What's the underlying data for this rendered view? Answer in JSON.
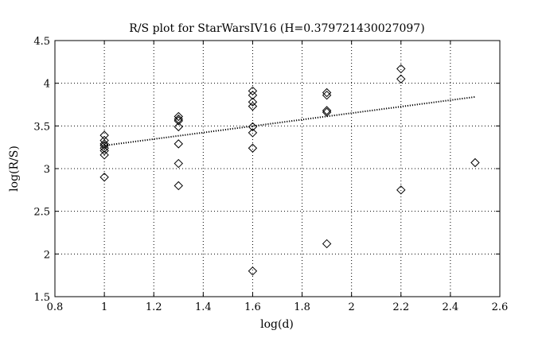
{
  "chart_data": {
    "type": "scatter",
    "title": "R/S plot for StarWarsIV16 (H=0.379721430027097)",
    "xlabel": "log(d)",
    "ylabel": "log(R/S)",
    "xlim": [
      0.8,
      2.6
    ],
    "ylim": [
      1.5,
      4.5
    ],
    "xticks": [
      0.8,
      1,
      1.2,
      1.4,
      1.6,
      1.8,
      2,
      2.2,
      2.4,
      2.6
    ],
    "yticks": [
      1.5,
      2,
      2.5,
      3,
      3.5,
      4,
      4.5
    ],
    "xtick_labels": [
      "0.8",
      "1",
      "1.2",
      "1.4",
      "1.6",
      "1.8",
      "2",
      "2.2",
      "2.4",
      "2.6"
    ],
    "ytick_labels": [
      "1.5",
      "2",
      "2.5",
      "3",
      "3.5",
      "4",
      "4.5"
    ],
    "grid": true,
    "marker": "diamond",
    "points": [
      {
        "x": 1.0,
        "y": 3.39
      },
      {
        "x": 1.0,
        "y": 3.33
      },
      {
        "x": 1.0,
        "y": 3.29
      },
      {
        "x": 1.0,
        "y": 3.27
      },
      {
        "x": 1.0,
        "y": 3.24
      },
      {
        "x": 1.0,
        "y": 3.21
      },
      {
        "x": 1.0,
        "y": 3.16
      },
      {
        "x": 1.0,
        "y": 2.9
      },
      {
        "x": 1.3,
        "y": 3.61
      },
      {
        "x": 1.3,
        "y": 3.58
      },
      {
        "x": 1.3,
        "y": 3.56
      },
      {
        "x": 1.3,
        "y": 3.49
      },
      {
        "x": 1.3,
        "y": 3.29
      },
      {
        "x": 1.3,
        "y": 3.06
      },
      {
        "x": 1.3,
        "y": 2.8
      },
      {
        "x": 1.6,
        "y": 3.91
      },
      {
        "x": 1.6,
        "y": 3.86
      },
      {
        "x": 1.6,
        "y": 3.78
      },
      {
        "x": 1.6,
        "y": 3.73
      },
      {
        "x": 1.6,
        "y": 3.49
      },
      {
        "x": 1.6,
        "y": 3.42
      },
      {
        "x": 1.6,
        "y": 3.24
      },
      {
        "x": 1.6,
        "y": 1.8
      },
      {
        "x": 1.9,
        "y": 3.89
      },
      {
        "x": 1.9,
        "y": 3.86
      },
      {
        "x": 1.9,
        "y": 3.68
      },
      {
        "x": 1.9,
        "y": 3.66
      },
      {
        "x": 1.9,
        "y": 2.12
      },
      {
        "x": 2.2,
        "y": 4.17
      },
      {
        "x": 2.2,
        "y": 4.05
      },
      {
        "x": 2.2,
        "y": 2.75
      },
      {
        "x": 2.5,
        "y": 3.07
      }
    ],
    "fit_line": {
      "x": [
        1.0,
        2.5
      ],
      "y": [
        3.27,
        3.84
      ],
      "style": "dotted"
    }
  }
}
